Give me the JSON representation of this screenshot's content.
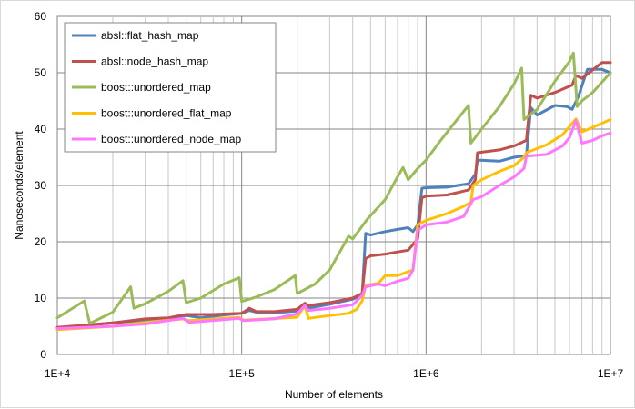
{
  "chart_data": {
    "type": "line",
    "xscale": "log",
    "xlim": [
      10000,
      10000000
    ],
    "ylim": [
      0,
      60
    ],
    "xlabel": "Number of elements",
    "ylabel": "Nanoseconds/element",
    "x_tick_labels": [
      "1E+4",
      "1E+5",
      "1E+6",
      "1E+7"
    ],
    "y_tick_labels": [
      "0",
      "10",
      "20",
      "30",
      "40",
      "50",
      "60"
    ],
    "grid": true,
    "legend_position": "top-left",
    "series": [
      {
        "name": "absl::flat_hash_map",
        "color": "#4f81bd",
        "points": [
          [
            10000,
            4.7
          ],
          [
            20000,
            5.6
          ],
          [
            30000,
            6.1
          ],
          [
            40000,
            6.2
          ],
          [
            50000,
            6.9
          ],
          [
            60000,
            6.5
          ],
          [
            80000,
            7.0
          ],
          [
            100000,
            7.3
          ],
          [
            110000,
            7.8
          ],
          [
            120000,
            7.5
          ],
          [
            150000,
            7.4
          ],
          [
            200000,
            7.7
          ],
          [
            220000,
            9.0
          ],
          [
            230000,
            8.2
          ],
          [
            300000,
            8.9
          ],
          [
            400000,
            9.8
          ],
          [
            450000,
            10.5
          ],
          [
            470000,
            21.5
          ],
          [
            500000,
            21.2
          ],
          [
            600000,
            21.8
          ],
          [
            700000,
            22.2
          ],
          [
            800000,
            22.5
          ],
          [
            850000,
            21.8
          ],
          [
            900000,
            23.0
          ],
          [
            950000,
            29.5
          ],
          [
            1000000,
            29.6
          ],
          [
            1300000,
            29.7
          ],
          [
            1700000,
            30.3
          ],
          [
            1850000,
            32.0
          ],
          [
            1900000,
            34.5
          ],
          [
            2500000,
            34.3
          ],
          [
            3000000,
            35.0
          ],
          [
            3500000,
            35.3
          ],
          [
            3700000,
            43.8
          ],
          [
            4000000,
            42.5
          ],
          [
            5000000,
            44.2
          ],
          [
            5800000,
            44.0
          ],
          [
            6200000,
            43.5
          ],
          [
            6700000,
            45.8
          ],
          [
            7500000,
            50.6
          ],
          [
            9000000,
            50.6
          ],
          [
            10000000,
            50.0
          ]
        ]
      },
      {
        "name": "absl::node_hash_map",
        "color": "#c0504d",
        "points": [
          [
            10000,
            4.8
          ],
          [
            20000,
            5.6
          ],
          [
            30000,
            6.3
          ],
          [
            40000,
            6.5
          ],
          [
            50000,
            7.1
          ],
          [
            70000,
            7.1
          ],
          [
            100000,
            7.3
          ],
          [
            110000,
            8.2
          ],
          [
            120000,
            7.6
          ],
          [
            150000,
            7.6
          ],
          [
            200000,
            8.0
          ],
          [
            220000,
            9.1
          ],
          [
            230000,
            8.7
          ],
          [
            300000,
            9.2
          ],
          [
            400000,
            10.0
          ],
          [
            450000,
            10.8
          ],
          [
            470000,
            17.0
          ],
          [
            500000,
            17.5
          ],
          [
            600000,
            17.8
          ],
          [
            700000,
            18.2
          ],
          [
            800000,
            18.5
          ],
          [
            900000,
            20.5
          ],
          [
            950000,
            27.8
          ],
          [
            1000000,
            28.1
          ],
          [
            1300000,
            28.3
          ],
          [
            1700000,
            29.2
          ],
          [
            1850000,
            31.0
          ],
          [
            1900000,
            35.8
          ],
          [
            2500000,
            36.3
          ],
          [
            3000000,
            37.0
          ],
          [
            3500000,
            38.0
          ],
          [
            3700000,
            46.0
          ],
          [
            4000000,
            45.5
          ],
          [
            5000000,
            46.5
          ],
          [
            6200000,
            47.8
          ],
          [
            6500000,
            49.5
          ],
          [
            7000000,
            49.0
          ],
          [
            8000000,
            50.5
          ],
          [
            9000000,
            51.8
          ],
          [
            10000000,
            51.8
          ]
        ]
      },
      {
        "name": "boost::unordered_map",
        "color": "#9bbb59",
        "points": [
          [
            10000,
            6.5
          ],
          [
            14000,
            9.5
          ],
          [
            15000,
            5.5
          ],
          [
            20000,
            7.5
          ],
          [
            25000,
            12.0
          ],
          [
            26000,
            8.2
          ],
          [
            30000,
            9.0
          ],
          [
            40000,
            11.2
          ],
          [
            48000,
            13.1
          ],
          [
            50000,
            9.2
          ],
          [
            60000,
            10.0
          ],
          [
            80000,
            12.5
          ],
          [
            97000,
            13.6
          ],
          [
            100000,
            9.4
          ],
          [
            120000,
            10.2
          ],
          [
            150000,
            11.5
          ],
          [
            195000,
            14.0
          ],
          [
            200000,
            10.8
          ],
          [
            250000,
            12.5
          ],
          [
            300000,
            15.0
          ],
          [
            380000,
            21.0
          ],
          [
            400000,
            20.5
          ],
          [
            480000,
            24.0
          ],
          [
            600000,
            27.5
          ],
          [
            700000,
            31.5
          ],
          [
            750000,
            33.2
          ],
          [
            800000,
            31.0
          ],
          [
            900000,
            33.0
          ],
          [
            1000000,
            34.5
          ],
          [
            1200000,
            38.0
          ],
          [
            1500000,
            42.0
          ],
          [
            1700000,
            44.2
          ],
          [
            1750000,
            37.5
          ],
          [
            2000000,
            40.0
          ],
          [
            2500000,
            44.0
          ],
          [
            3000000,
            48.0
          ],
          [
            3300000,
            50.8
          ],
          [
            3400000,
            41.7
          ],
          [
            4000000,
            43.5
          ],
          [
            5000000,
            48.5
          ],
          [
            6000000,
            52.0
          ],
          [
            6300000,
            53.5
          ],
          [
            6600000,
            44.0
          ],
          [
            7000000,
            45.0
          ],
          [
            8000000,
            46.5
          ],
          [
            10000000,
            50.0
          ]
        ]
      },
      {
        "name": "boost::unordered_flat_map",
        "color": "#ffc000",
        "points": [
          [
            10000,
            4.4
          ],
          [
            20000,
            5.0
          ],
          [
            30000,
            5.7
          ],
          [
            48000,
            6.3
          ],
          [
            52000,
            6.0
          ],
          [
            97000,
            6.6
          ],
          [
            102000,
            6.1
          ],
          [
            200000,
            6.6
          ],
          [
            220000,
            8.7
          ],
          [
            230000,
            6.4
          ],
          [
            300000,
            6.9
          ],
          [
            380000,
            7.3
          ],
          [
            420000,
            8.0
          ],
          [
            450000,
            9.5
          ],
          [
            470000,
            12.3
          ],
          [
            550000,
            12.6
          ],
          [
            600000,
            14.0
          ],
          [
            700000,
            14.0
          ],
          [
            850000,
            15.0
          ],
          [
            900000,
            23.0
          ],
          [
            1000000,
            23.8
          ],
          [
            1300000,
            25.0
          ],
          [
            1600000,
            26.3
          ],
          [
            1750000,
            27.0
          ],
          [
            1800000,
            30.0
          ],
          [
            2000000,
            31.0
          ],
          [
            2500000,
            32.5
          ],
          [
            3000000,
            33.5
          ],
          [
            3400000,
            35.0
          ],
          [
            3500000,
            35.8
          ],
          [
            4500000,
            37.2
          ],
          [
            5500000,
            39.0
          ],
          [
            6500000,
            41.8
          ],
          [
            7000000,
            39.5
          ],
          [
            8000000,
            40.3
          ],
          [
            10000000,
            41.7
          ]
        ]
      },
      {
        "name": "boost::unordered_node_map",
        "color": "#ff77ff",
        "points": [
          [
            10000,
            4.6
          ],
          [
            20000,
            5.0
          ],
          [
            30000,
            5.4
          ],
          [
            48000,
            6.4
          ],
          [
            52000,
            5.7
          ],
          [
            97000,
            6.4
          ],
          [
            102000,
            6.0
          ],
          [
            150000,
            6.3
          ],
          [
            200000,
            7.2
          ],
          [
            220000,
            8.7
          ],
          [
            230000,
            7.8
          ],
          [
            300000,
            8.2
          ],
          [
            400000,
            8.8
          ],
          [
            450000,
            10.5
          ],
          [
            470000,
            12.0
          ],
          [
            550000,
            12.5
          ],
          [
            600000,
            12.2
          ],
          [
            700000,
            13.0
          ],
          [
            800000,
            13.5
          ],
          [
            850000,
            15.0
          ],
          [
            900000,
            22.0
          ],
          [
            1000000,
            23.0
          ],
          [
            1300000,
            23.5
          ],
          [
            1600000,
            24.5
          ],
          [
            1800000,
            27.5
          ],
          [
            2000000,
            28.0
          ],
          [
            2500000,
            30.0
          ],
          [
            3000000,
            31.5
          ],
          [
            3400000,
            33.0
          ],
          [
            3500000,
            35.2
          ],
          [
            4500000,
            35.5
          ],
          [
            5500000,
            37.0
          ],
          [
            6000000,
            38.5
          ],
          [
            6500000,
            41.5
          ],
          [
            7000000,
            37.5
          ],
          [
            8000000,
            38.0
          ],
          [
            9000000,
            38.8
          ],
          [
            10000000,
            39.3
          ]
        ]
      }
    ]
  }
}
